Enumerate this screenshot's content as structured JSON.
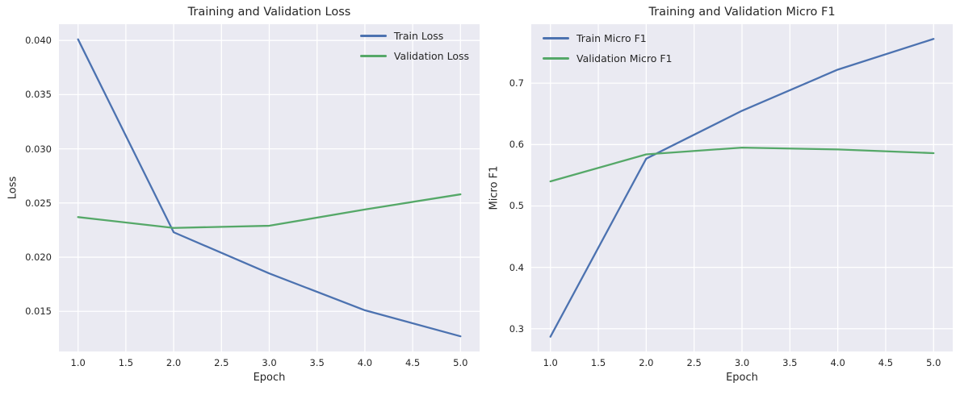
{
  "figure": {
    "background": "#FFFFFF",
    "axes_background": "#EAEAF2",
    "grid_color": "#FFFFFF",
    "text_color": "#262626",
    "accent_blue": "#4C72B0",
    "accent_green": "#55A868"
  },
  "chart_data": [
    {
      "type": "line",
      "title": "Training and Validation Loss",
      "xlabel": "Epoch",
      "ylabel": "Loss",
      "x": [
        1,
        2,
        3,
        4,
        5
      ],
      "series": [
        {
          "name": "Train Loss",
          "color": "#4C72B0",
          "values": [
            0.0401,
            0.0223,
            0.0185,
            0.0151,
            0.0127
          ]
        },
        {
          "name": "Validation Loss",
          "color": "#55A868",
          "values": [
            0.0237,
            0.0227,
            0.0229,
            0.0244,
            0.0258
          ]
        }
      ],
      "xlim": [
        0.8,
        5.2
      ],
      "ylim": [
        0.0113,
        0.0415
      ],
      "xticks": [
        1.0,
        1.5,
        2.0,
        2.5,
        3.0,
        3.5,
        4.0,
        4.5,
        5.0
      ],
      "xtick_labels": [
        "1.0",
        "1.5",
        "2.0",
        "2.5",
        "3.0",
        "3.5",
        "4.0",
        "4.5",
        "5.0"
      ],
      "yticks": [
        0.015,
        0.02,
        0.025,
        0.03,
        0.035,
        0.04
      ],
      "ytick_labels": [
        "0.015",
        "0.020",
        "0.025",
        "0.030",
        "0.035",
        "0.040"
      ],
      "grid": true,
      "legend_position": "upper-right"
    },
    {
      "type": "line",
      "title": "Training and Validation Micro F1",
      "xlabel": "Epoch",
      "ylabel": "Micro F1",
      "x": [
        1,
        2,
        3,
        4,
        5
      ],
      "series": [
        {
          "name": "Train Micro F1",
          "color": "#4C72B0",
          "values": [
            0.287,
            0.577,
            0.655,
            0.722,
            0.772
          ]
        },
        {
          "name": "Validation Micro F1",
          "color": "#55A868",
          "values": [
            0.54,
            0.584,
            0.595,
            0.592,
            0.586
          ]
        }
      ],
      "xlim": [
        0.8,
        5.2
      ],
      "ylim": [
        0.263,
        0.796
      ],
      "xticks": [
        1.0,
        1.5,
        2.0,
        2.5,
        3.0,
        3.5,
        4.0,
        4.5,
        5.0
      ],
      "xtick_labels": [
        "1.0",
        "1.5",
        "2.0",
        "2.5",
        "3.0",
        "3.5",
        "4.0",
        "4.5",
        "5.0"
      ],
      "yticks": [
        0.3,
        0.4,
        0.5,
        0.6,
        0.7
      ],
      "ytick_labels": [
        "0.3",
        "0.4",
        "0.5",
        "0.6",
        "0.7"
      ],
      "grid": true,
      "legend_position": "upper-left"
    }
  ]
}
